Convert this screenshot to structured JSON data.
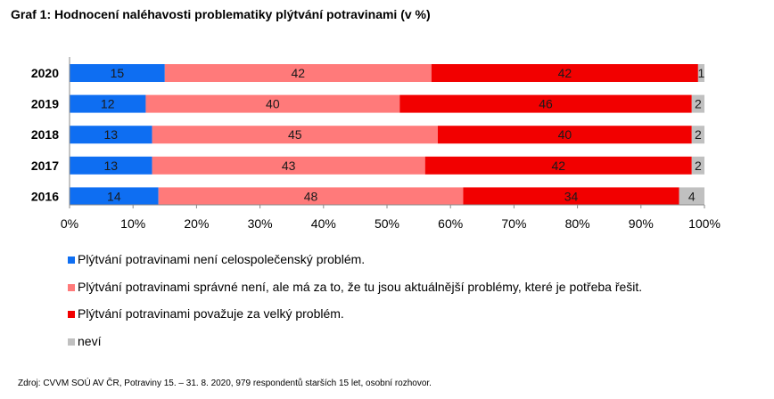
{
  "title": "Graf 1: Hodnocení naléhavosti problematiky plýtvání potravinami (v %)",
  "source": "Zdroj: CVVM SOÚ AV ČR, Potraviny 15. – 31. 8. 2020, 979 respondentů starších 15 let, osobní rozhovor.",
  "chart_data": {
    "type": "bar",
    "orientation": "horizontal",
    "stacked": true,
    "title": "Graf 1: Hodnocení naléhavosti problematiky plýtvání potravinami (v %)",
    "categories": [
      "2020",
      "2019",
      "2018",
      "2017",
      "2016"
    ],
    "series": [
      {
        "name": "Plýtvání potravinami není celospolečenský problém.",
        "color": "#0e6ef2",
        "values": [
          15,
          12,
          13,
          13,
          14
        ]
      },
      {
        "name": "Plýtvání potravinami správné není, ale má za to, že tu jsou aktuálnější problémy, které je potřeba řešit.",
        "color": "#ff7a7a",
        "values": [
          42,
          40,
          45,
          43,
          48
        ]
      },
      {
        "name": "Plýtvání potravinami považuje za velký problém.",
        "color": "#f20000",
        "values": [
          42,
          46,
          40,
          42,
          34
        ]
      },
      {
        "name": "neví",
        "color": "#c0c0c0",
        "values": [
          1,
          2,
          2,
          2,
          4
        ]
      }
    ],
    "xlim": [
      0,
      100
    ],
    "xticks": [
      "0%",
      "10%",
      "20%",
      "30%",
      "40%",
      "50%",
      "60%",
      "70%",
      "80%",
      "90%",
      "100%"
    ],
    "grid": false,
    "legend_position": "bottom"
  }
}
